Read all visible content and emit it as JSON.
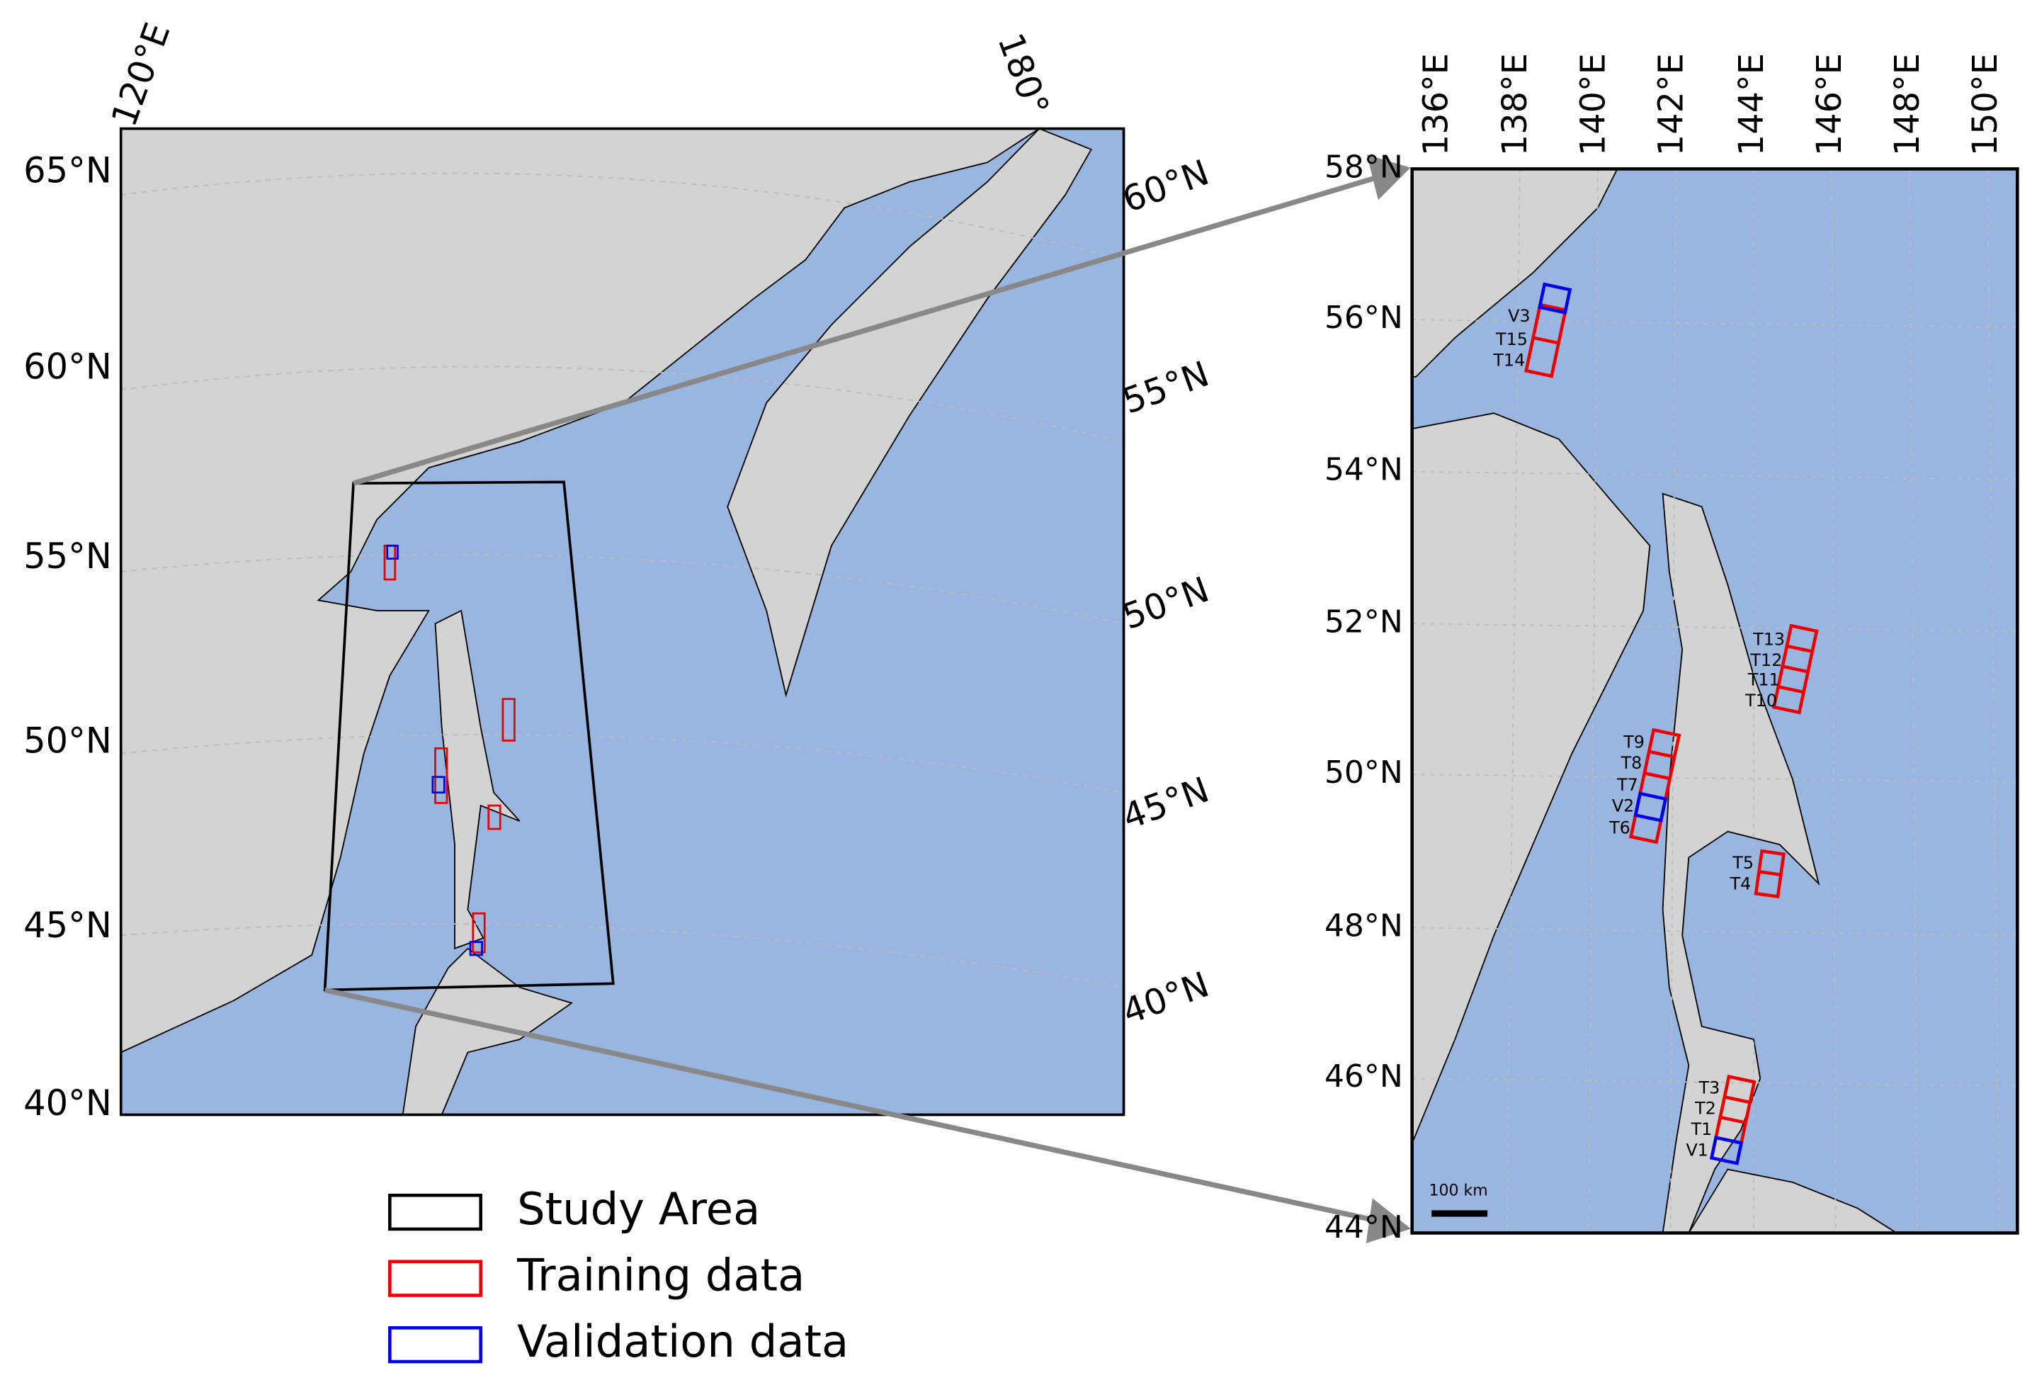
{
  "overview_map": {
    "lon_labels": [
      "120°E",
      "180°"
    ],
    "lat_labels_left": [
      "65°N",
      "60°N",
      "55°N",
      "50°N",
      "45°N",
      "40°N"
    ],
    "lat_labels_right": [
      "60°N",
      "55°N",
      "50°N",
      "45°N",
      "40°N"
    ]
  },
  "detail_map": {
    "lon_labels": [
      "136°E",
      "138°E",
      "140°E",
      "142°E",
      "144°E",
      "146°E",
      "148°E",
      "150°E"
    ],
    "lat_labels": [
      "58°N",
      "56°N",
      "54°N",
      "52°N",
      "50°N",
      "48°N",
      "46°N",
      "44°N"
    ],
    "box_labels": [
      "V3",
      "T15",
      "T14",
      "T13",
      "T12",
      "T11",
      "T10",
      "T9",
      "T8",
      "T7",
      "V2",
      "T6",
      "T5",
      "T4",
      "T3",
      "T2",
      "T1",
      "V1"
    ],
    "scale_bar": "100 km"
  },
  "legend": [
    "Study Area",
    "Training data",
    "Validation data"
  ]
}
